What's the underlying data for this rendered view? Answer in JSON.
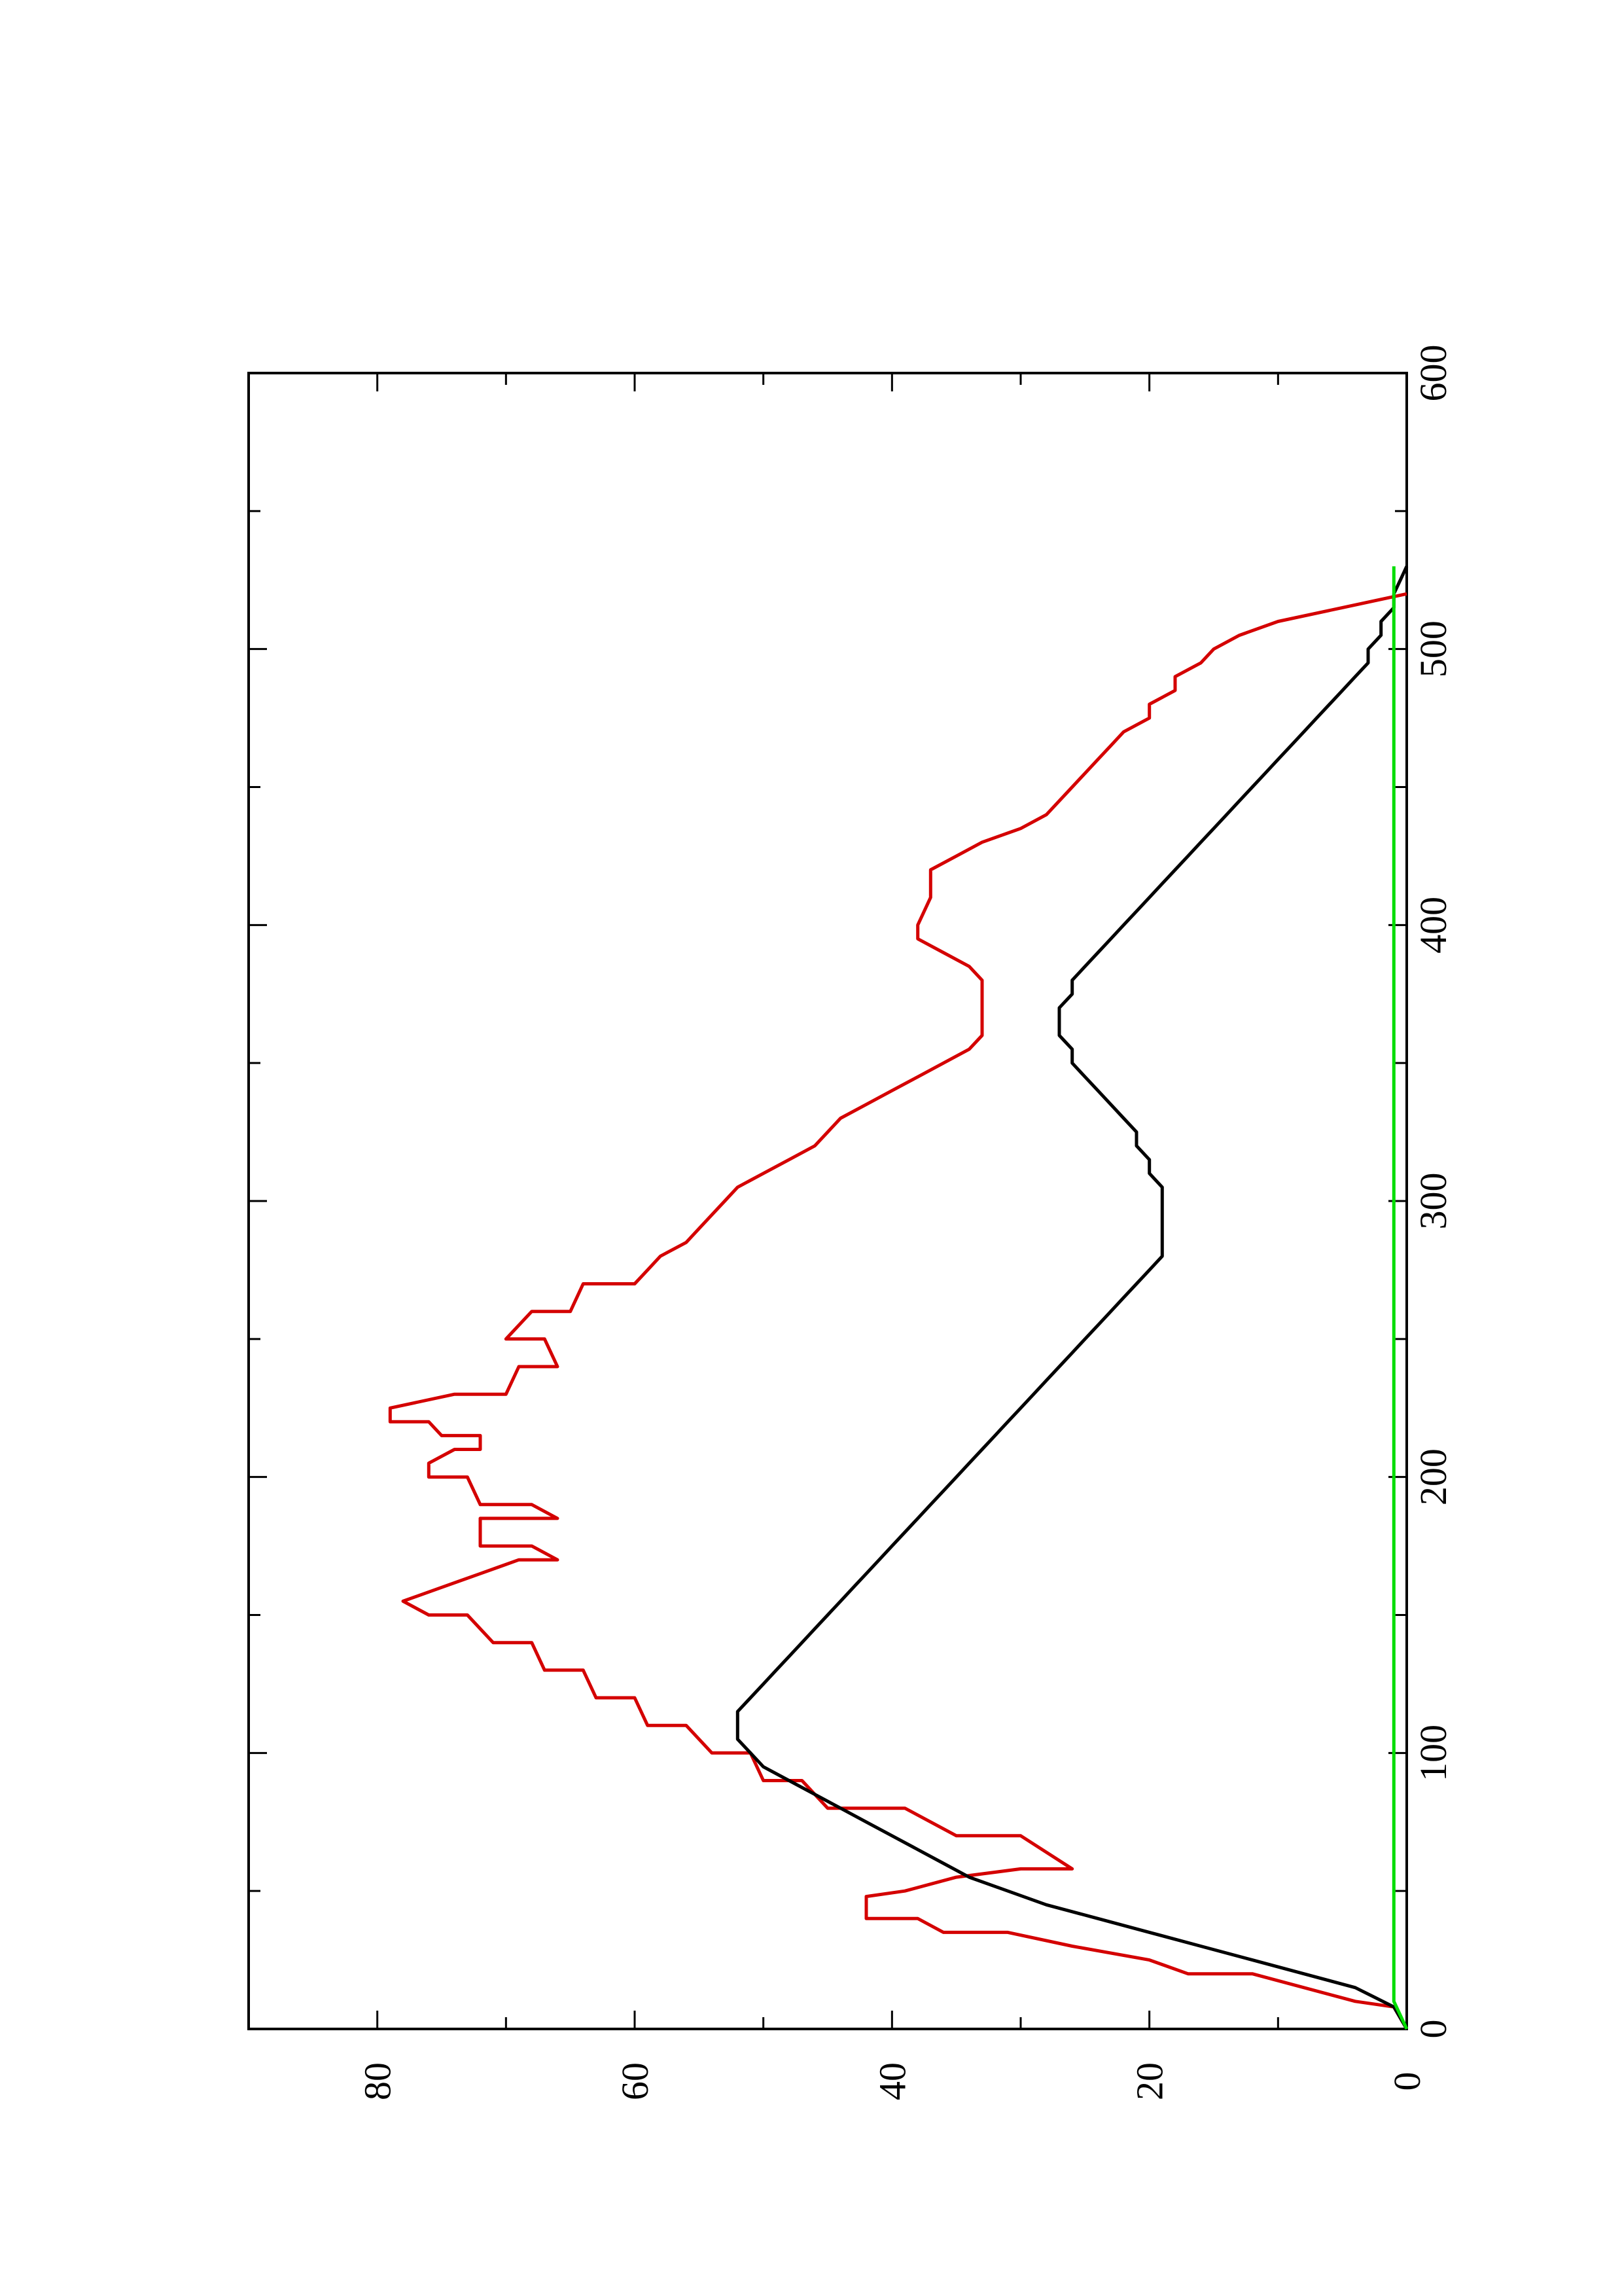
{
  "chart_data": {
    "type": "line",
    "orientation": "rotated-90-ccw",
    "title": "",
    "xlabel": "",
    "ylabel": "",
    "xlim": [
      0,
      600
    ],
    "ylim": [
      0,
      90
    ],
    "grid": false,
    "legend": "none",
    "x_ticks": {
      "major": [
        0,
        100,
        200,
        300,
        400,
        500,
        600
      ],
      "minor": [
        50,
        150,
        250,
        350,
        450,
        550
      ]
    },
    "y_ticks": {
      "major": [
        0,
        20,
        40,
        60,
        80
      ],
      "minor": [
        10,
        30,
        50,
        70
      ]
    },
    "series": [
      {
        "color": "#d40000",
        "points": [
          [
            0,
            0
          ],
          [
            8,
            1
          ],
          [
            10,
            4
          ],
          [
            20,
            12
          ],
          [
            20,
            17
          ],
          [
            25,
            20
          ],
          [
            30,
            26
          ],
          [
            35,
            31
          ],
          [
            35,
            36
          ],
          [
            40,
            38
          ],
          [
            40,
            42
          ],
          [
            48,
            42
          ],
          [
            50,
            39
          ],
          [
            55,
            35
          ],
          [
            58,
            30
          ],
          [
            58,
            26
          ],
          [
            70,
            30
          ],
          [
            70,
            35
          ],
          [
            80,
            39
          ],
          [
            80,
            45
          ],
          [
            90,
            47
          ],
          [
            90,
            50
          ],
          [
            100,
            51
          ],
          [
            100,
            54
          ],
          [
            110,
            56
          ],
          [
            110,
            59
          ],
          [
            120,
            60
          ],
          [
            120,
            63
          ],
          [
            130,
            64
          ],
          [
            130,
            67
          ],
          [
            140,
            68
          ],
          [
            140,
            71
          ],
          [
            150,
            73
          ],
          [
            150,
            76
          ],
          [
            155,
            78
          ],
          [
            160,
            75
          ],
          [
            165,
            72
          ],
          [
            170,
            69
          ],
          [
            170,
            66
          ],
          [
            175,
            68
          ],
          [
            175,
            72
          ],
          [
            185,
            72
          ],
          [
            185,
            66
          ],
          [
            190,
            68
          ],
          [
            190,
            72
          ],
          [
            200,
            73
          ],
          [
            200,
            76
          ],
          [
            205,
            76
          ],
          [
            210,
            74
          ],
          [
            210,
            72
          ],
          [
            215,
            72
          ],
          [
            215,
            75
          ],
          [
            220,
            76
          ],
          [
            220,
            79
          ],
          [
            225,
            79
          ],
          [
            230,
            74
          ],
          [
            230,
            70
          ],
          [
            240,
            69
          ],
          [
            240,
            66
          ],
          [
            250,
            67
          ],
          [
            250,
            70
          ],
          [
            260,
            68
          ],
          [
            260,
            65
          ],
          [
            270,
            64
          ],
          [
            270,
            60
          ],
          [
            275,
            59
          ],
          [
            280,
            58
          ],
          [
            285,
            56
          ],
          [
            290,
            55
          ],
          [
            295,
            54
          ],
          [
            300,
            53
          ],
          [
            305,
            52
          ],
          [
            310,
            50
          ],
          [
            315,
            48
          ],
          [
            320,
            46
          ],
          [
            330,
            44
          ],
          [
            335,
            42
          ],
          [
            340,
            40
          ],
          [
            345,
            38
          ],
          [
            350,
            36
          ],
          [
            355,
            34
          ],
          [
            360,
            33
          ],
          [
            370,
            33
          ],
          [
            380,
            33
          ],
          [
            385,
            34
          ],
          [
            390,
            36
          ],
          [
            395,
            38
          ],
          [
            400,
            38
          ],
          [
            410,
            37
          ],
          [
            420,
            37
          ],
          [
            425,
            35
          ],
          [
            430,
            33
          ],
          [
            435,
            30
          ],
          [
            440,
            28
          ],
          [
            450,
            26
          ],
          [
            460,
            24
          ],
          [
            465,
            23
          ],
          [
            470,
            22
          ],
          [
            475,
            20
          ],
          [
            480,
            20
          ],
          [
            485,
            18
          ],
          [
            490,
            18
          ],
          [
            495,
            16
          ],
          [
            500,
            15
          ],
          [
            505,
            13
          ],
          [
            510,
            10
          ],
          [
            515,
            5
          ],
          [
            520,
            0
          ]
        ]
      },
      {
        "color": "#000000",
        "points": [
          [
            0,
            0
          ],
          [
            8,
            1
          ],
          [
            15,
            4
          ],
          [
            20,
            8
          ],
          [
            25,
            12
          ],
          [
            30,
            16
          ],
          [
            35,
            20
          ],
          [
            40,
            24
          ],
          [
            45,
            28
          ],
          [
            50,
            31
          ],
          [
            55,
            34
          ],
          [
            60,
            36
          ],
          [
            65,
            38
          ],
          [
            70,
            40
          ],
          [
            75,
            42
          ],
          [
            80,
            44
          ],
          [
            85,
            46
          ],
          [
            90,
            48
          ],
          [
            95,
            50
          ],
          [
            100,
            51
          ],
          [
            105,
            52
          ],
          [
            110,
            52
          ],
          [
            115,
            52
          ],
          [
            120,
            51
          ],
          [
            125,
            50
          ],
          [
            130,
            49
          ],
          [
            135,
            48
          ],
          [
            140,
            47
          ],
          [
            145,
            46
          ],
          [
            150,
            45
          ],
          [
            155,
            44
          ],
          [
            160,
            43
          ],
          [
            165,
            42
          ],
          [
            170,
            41
          ],
          [
            175,
            40
          ],
          [
            180,
            39
          ],
          [
            185,
            38
          ],
          [
            190,
            37
          ],
          [
            195,
            36
          ],
          [
            200,
            35
          ],
          [
            205,
            34
          ],
          [
            210,
            33
          ],
          [
            215,
            32
          ],
          [
            220,
            31
          ],
          [
            225,
            30
          ],
          [
            230,
            29
          ],
          [
            235,
            28
          ],
          [
            240,
            27
          ],
          [
            245,
            26
          ],
          [
            250,
            25
          ],
          [
            255,
            24
          ],
          [
            260,
            23
          ],
          [
            265,
            22
          ],
          [
            270,
            21
          ],
          [
            275,
            20
          ],
          [
            280,
            19
          ],
          [
            285,
            19
          ],
          [
            290,
            19
          ],
          [
            295,
            19
          ],
          [
            300,
            19
          ],
          [
            305,
            19
          ],
          [
            310,
            20
          ],
          [
            315,
            20
          ],
          [
            320,
            21
          ],
          [
            325,
            21
          ],
          [
            330,
            22
          ],
          [
            335,
            23
          ],
          [
            340,
            24
          ],
          [
            345,
            25
          ],
          [
            350,
            26
          ],
          [
            355,
            26
          ],
          [
            360,
            27
          ],
          [
            365,
            27
          ],
          [
            370,
            27
          ],
          [
            375,
            26
          ],
          [
            380,
            26
          ],
          [
            385,
            25
          ],
          [
            390,
            24
          ],
          [
            395,
            23
          ],
          [
            400,
            22
          ],
          [
            405,
            21
          ],
          [
            410,
            20
          ],
          [
            415,
            19
          ],
          [
            420,
            18
          ],
          [
            425,
            17
          ],
          [
            430,
            16
          ],
          [
            435,
            15
          ],
          [
            440,
            14
          ],
          [
            445,
            13
          ],
          [
            450,
            12
          ],
          [
            455,
            11
          ],
          [
            460,
            10
          ],
          [
            465,
            9
          ],
          [
            470,
            8
          ],
          [
            475,
            7
          ],
          [
            480,
            6
          ],
          [
            485,
            5
          ],
          [
            490,
            4
          ],
          [
            495,
            3
          ],
          [
            500,
            3
          ],
          [
            505,
            2
          ],
          [
            510,
            2
          ],
          [
            515,
            1
          ],
          [
            520,
            1
          ],
          [
            525,
            0.5
          ],
          [
            530,
            0
          ]
        ]
      },
      {
        "color": "#00dd00",
        "points": [
          [
            0,
            0
          ],
          [
            10,
            1
          ],
          [
            20,
            1
          ],
          [
            30,
            1
          ],
          [
            40,
            1
          ],
          [
            50,
            1
          ],
          [
            60,
            1
          ],
          [
            70,
            1
          ],
          [
            80,
            1
          ],
          [
            90,
            1
          ],
          [
            100,
            1
          ],
          [
            110,
            1
          ],
          [
            120,
            1
          ],
          [
            130,
            1
          ],
          [
            140,
            1
          ],
          [
            150,
            1
          ],
          [
            160,
            1
          ],
          [
            170,
            1
          ],
          [
            180,
            1
          ],
          [
            190,
            1
          ],
          [
            200,
            1
          ],
          [
            210,
            1
          ],
          [
            220,
            1
          ],
          [
            230,
            1
          ],
          [
            240,
            1
          ],
          [
            250,
            1
          ],
          [
            260,
            1
          ],
          [
            270,
            1
          ],
          [
            280,
            1
          ],
          [
            290,
            1
          ],
          [
            300,
            1
          ],
          [
            310,
            1
          ],
          [
            320,
            1
          ],
          [
            330,
            1
          ],
          [
            340,
            1
          ],
          [
            350,
            1
          ],
          [
            360,
            1
          ],
          [
            370,
            1
          ],
          [
            380,
            1
          ],
          [
            390,
            1
          ],
          [
            400,
            1
          ],
          [
            410,
            1
          ],
          [
            420,
            1
          ],
          [
            430,
            1
          ],
          [
            440,
            1
          ],
          [
            450,
            1
          ],
          [
            460,
            1
          ],
          [
            470,
            1
          ],
          [
            480,
            1
          ],
          [
            490,
            1
          ],
          [
            500,
            1
          ],
          [
            510,
            1
          ],
          [
            520,
            1
          ],
          [
            530,
            1
          ]
        ]
      }
    ]
  }
}
